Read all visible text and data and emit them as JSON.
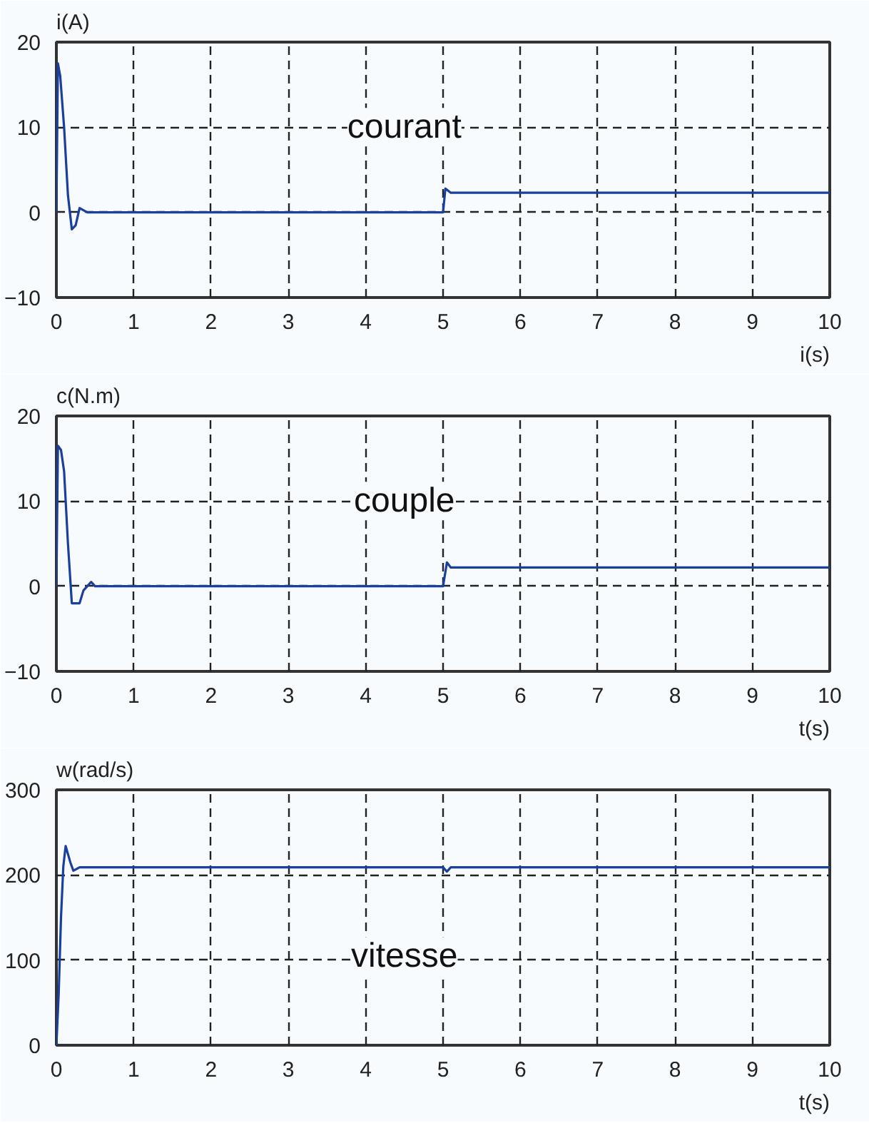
{
  "chart_data": [
    {
      "type": "line",
      "ylabel": "i(A)",
      "xlabel": "i(s)",
      "annotations": [
        "courant"
      ],
      "xlim": [
        0,
        10
      ],
      "ylim": [
        -10,
        20
      ],
      "xticks": [
        0,
        1,
        2,
        3,
        4,
        5,
        6,
        7,
        8,
        9,
        10
      ],
      "yticks": [
        -10,
        0,
        10,
        20
      ],
      "grid": true,
      "series": [
        {
          "color": "#1a3f9c",
          "x": [
            0,
            0.02,
            0.05,
            0.1,
            0.15,
            0.2,
            0.25,
            0.3,
            0.4,
            5,
            5.03,
            5.1,
            10
          ],
          "values": [
            0,
            17.5,
            16,
            10,
            2,
            -2,
            -1.5,
            0.5,
            0,
            0,
            2.8,
            2.3,
            2.3
          ]
        }
      ]
    },
    {
      "type": "line",
      "ylabel": "c(N.m)",
      "xlabel": "t(s)",
      "annotations": [
        "couple"
      ],
      "xlim": [
        0,
        10
      ],
      "ylim": [
        -10,
        20
      ],
      "xticks": [
        0,
        1,
        2,
        3,
        4,
        5,
        6,
        7,
        8,
        9,
        10
      ],
      "yticks": [
        -10,
        0,
        10,
        20
      ],
      "grid": true,
      "series": [
        {
          "color": "#1a3f9c",
          "x": [
            0,
            0.02,
            0.06,
            0.1,
            0.15,
            0.2,
            0.3,
            0.35,
            0.45,
            0.5,
            5,
            5.05,
            5.1,
            10
          ],
          "values": [
            0,
            16.5,
            16,
            13.5,
            5,
            -2,
            -2,
            -0.5,
            0.5,
            0,
            0,
            2.8,
            2.2,
            2.2
          ]
        }
      ]
    },
    {
      "type": "line",
      "ylabel": "w(rad/s)",
      "xlabel": "t(s)",
      "annotations": [
        "vitesse"
      ],
      "xlim": [
        0,
        10
      ],
      "ylim": [
        0,
        300
      ],
      "xticks": [
        0,
        1,
        2,
        3,
        4,
        5,
        6,
        7,
        8,
        9,
        10
      ],
      "yticks": [
        0,
        100,
        200,
        300
      ],
      "grid": true,
      "series": [
        {
          "color": "#1a3f9c",
          "x": [
            0,
            0.03,
            0.06,
            0.09,
            0.12,
            0.18,
            0.22,
            0.3,
            5,
            5.05,
            5.1,
            10
          ],
          "values": [
            0,
            60,
            150,
            210,
            234,
            215,
            205,
            209,
            209,
            204,
            209,
            209
          ]
        }
      ]
    }
  ]
}
